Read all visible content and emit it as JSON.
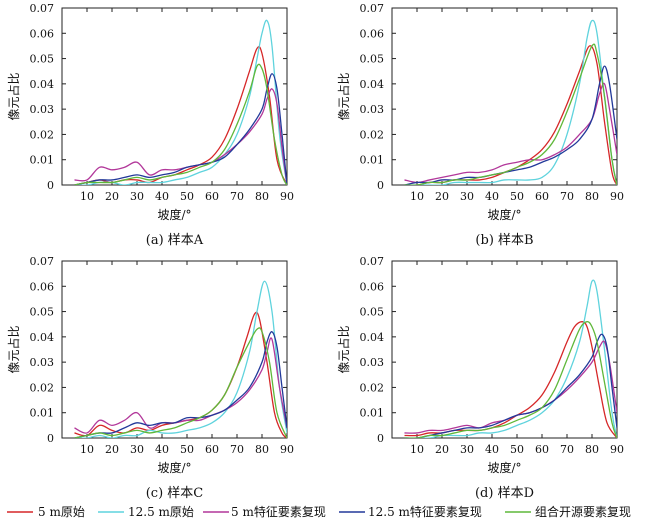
{
  "chart_data": [
    {
      "type": "line",
      "caption": "(a) 样本A",
      "xlabel": "坡度/°",
      "ylabel": "像元占比",
      "xlim": [
        0,
        90
      ],
      "ylim": [
        0,
        0.07
      ],
      "xticks": [
        "10",
        "20",
        "30",
        "40",
        "50",
        "60",
        "70",
        "80",
        "90"
      ],
      "yticks": [
        "0",
        "0.01",
        "0.02",
        "0.03",
        "0.04",
        "0.05",
        "0.06",
        "0.07"
      ],
      "series": [
        {
          "name": "5 m原始",
          "x": [
            5,
            10,
            15,
            20,
            25,
            30,
            35,
            40,
            45,
            50,
            55,
            60,
            65,
            70,
            75,
            78,
            80,
            83,
            86,
            90
          ],
          "y": [
            0,
            0.001,
            0.002,
            0.001,
            0.002,
            0.002,
            0.001,
            0.003,
            0.004,
            0.006,
            0.008,
            0.011,
            0.018,
            0.03,
            0.045,
            0.054,
            0.052,
            0.035,
            0.01,
            0
          ]
        },
        {
          "name": "12.5 m原始",
          "x": [
            5,
            10,
            15,
            20,
            25,
            30,
            35,
            40,
            45,
            50,
            55,
            60,
            65,
            70,
            75,
            78,
            80,
            82,
            84,
            87,
            90
          ],
          "y": [
            0,
            0,
            0.001,
            0.001,
            0,
            0.001,
            0.001,
            0.001,
            0.002,
            0.003,
            0.005,
            0.007,
            0.012,
            0.02,
            0.035,
            0.05,
            0.06,
            0.065,
            0.055,
            0.02,
            0
          ]
        },
        {
          "name": "5 m特征要素复现",
          "x": [
            5,
            10,
            15,
            20,
            25,
            30,
            35,
            40,
            45,
            50,
            55,
            60,
            65,
            70,
            75,
            80,
            82,
            84,
            86,
            88,
            90
          ],
          "y": [
            0.002,
            0.002,
            0.007,
            0.006,
            0.007,
            0.009,
            0.004,
            0.006,
            0.006,
            0.007,
            0.008,
            0.009,
            0.012,
            0.016,
            0.021,
            0.028,
            0.034,
            0.038,
            0.032,
            0.015,
            0
          ]
        },
        {
          "name": "12.5 m特征要素复现",
          "x": [
            5,
            10,
            15,
            20,
            25,
            30,
            35,
            40,
            45,
            50,
            55,
            60,
            65,
            70,
            75,
            80,
            82,
            84,
            86,
            88,
            90
          ],
          "y": [
            0,
            0.001,
            0.002,
            0.002,
            0.003,
            0.004,
            0.003,
            0.004,
            0.005,
            0.007,
            0.008,
            0.009,
            0.011,
            0.016,
            0.022,
            0.03,
            0.038,
            0.044,
            0.038,
            0.02,
            0
          ]
        },
        {
          "name": "组合开源要素复现",
          "x": [
            5,
            10,
            15,
            20,
            25,
            30,
            35,
            40,
            45,
            50,
            55,
            60,
            65,
            70,
            75,
            78,
            80,
            82,
            85,
            88,
            90
          ],
          "y": [
            0,
            0.001,
            0.001,
            0.001,
            0.002,
            0.003,
            0.002,
            0.003,
            0.004,
            0.005,
            0.007,
            0.009,
            0.014,
            0.024,
            0.037,
            0.047,
            0.046,
            0.038,
            0.018,
            0.004,
            0
          ]
        }
      ]
    },
    {
      "type": "line",
      "caption": "(b) 样本B",
      "xlabel": "坡度/°",
      "ylabel": "像元占比",
      "xlim": [
        0,
        90
      ],
      "ylim": [
        0,
        0.07
      ],
      "xticks": [
        "10",
        "20",
        "30",
        "40",
        "50",
        "60",
        "70",
        "80",
        "90"
      ],
      "yticks": [
        "0",
        "0.01",
        "0.02",
        "0.03",
        "0.04",
        "0.05",
        "0.06",
        "0.07"
      ],
      "series": [
        {
          "name": "5 m原始",
          "x": [
            5,
            10,
            15,
            20,
            25,
            30,
            35,
            40,
            45,
            50,
            55,
            60,
            65,
            70,
            75,
            79,
            82,
            85,
            88,
            90
          ],
          "y": [
            0,
            0,
            0.001,
            0.001,
            0.002,
            0.002,
            0.002,
            0.003,
            0.005,
            0.007,
            0.01,
            0.014,
            0.021,
            0.032,
            0.045,
            0.055,
            0.048,
            0.025,
            0.005,
            0
          ]
        },
        {
          "name": "12.5 m原始",
          "x": [
            5,
            10,
            15,
            20,
            25,
            30,
            35,
            40,
            45,
            50,
            55,
            60,
            65,
            70,
            75,
            78,
            80,
            82,
            85,
            88,
            90
          ],
          "y": [
            0,
            0,
            0,
            0,
            0.001,
            0.001,
            0.001,
            0.001,
            0.002,
            0.002,
            0.002,
            0.003,
            0.008,
            0.02,
            0.04,
            0.058,
            0.065,
            0.06,
            0.035,
            0.01,
            0
          ]
        },
        {
          "name": "5 m特征要素复现",
          "x": [
            5,
            10,
            15,
            20,
            25,
            30,
            35,
            40,
            45,
            50,
            55,
            60,
            65,
            70,
            75,
            80,
            83,
            85,
            87,
            90
          ],
          "y": [
            0.002,
            0.001,
            0.002,
            0.003,
            0.004,
            0.005,
            0.005,
            0.006,
            0.008,
            0.009,
            0.01,
            0.01,
            0.012,
            0.015,
            0.02,
            0.026,
            0.036,
            0.04,
            0.03,
            0.012
          ]
        },
        {
          "name": "12.5 m特征要素复现",
          "x": [
            5,
            10,
            15,
            20,
            25,
            30,
            35,
            40,
            45,
            50,
            55,
            60,
            65,
            70,
            75,
            80,
            83,
            85,
            87,
            90
          ],
          "y": [
            0,
            0.001,
            0.001,
            0.002,
            0.002,
            0.003,
            0.003,
            0.004,
            0.005,
            0.006,
            0.007,
            0.009,
            0.011,
            0.014,
            0.018,
            0.026,
            0.04,
            0.047,
            0.04,
            0.018
          ]
        },
        {
          "name": "组合开源要素复现",
          "x": [
            5,
            10,
            15,
            20,
            25,
            30,
            35,
            40,
            45,
            50,
            55,
            60,
            65,
            70,
            75,
            80,
            82,
            85,
            88,
            90
          ],
          "y": [
            0,
            0,
            0.001,
            0.001,
            0.002,
            0.002,
            0.003,
            0.004,
            0.005,
            0.007,
            0.009,
            0.012,
            0.018,
            0.029,
            0.042,
            0.055,
            0.052,
            0.035,
            0.01,
            0
          ]
        }
      ]
    },
    {
      "type": "line",
      "caption": "(c) 样本C",
      "xlabel": "坡度/°",
      "ylabel": "像元占比",
      "xlim": [
        0,
        90
      ],
      "ylim": [
        0,
        0.07
      ],
      "xticks": [
        "10",
        "20",
        "30",
        "40",
        "50",
        "60",
        "70",
        "80",
        "90"
      ],
      "yticks": [
        "0",
        "0.01",
        "0.02",
        "0.03",
        "0.04",
        "0.05",
        "0.06",
        "0.07"
      ],
      "series": [
        {
          "name": "5 m原始",
          "x": [
            5,
            10,
            15,
            20,
            25,
            30,
            35,
            40,
            45,
            50,
            55,
            60,
            65,
            70,
            74,
            77,
            79,
            82,
            85,
            88,
            90
          ],
          "y": [
            0.002,
            0.001,
            0.005,
            0.003,
            0.002,
            0.004,
            0.003,
            0.005,
            0.006,
            0.007,
            0.008,
            0.011,
            0.017,
            0.028,
            0.04,
            0.049,
            0.047,
            0.03,
            0.01,
            0.002,
            0
          ]
        },
        {
          "name": "12.5 m原始",
          "x": [
            5,
            10,
            15,
            20,
            25,
            30,
            35,
            40,
            45,
            50,
            55,
            60,
            65,
            70,
            75,
            78,
            81,
            84,
            87,
            90
          ],
          "y": [
            0,
            0,
            0.001,
            0,
            0.001,
            0.001,
            0.003,
            0.002,
            0.002,
            0.003,
            0.004,
            0.006,
            0.01,
            0.018,
            0.034,
            0.05,
            0.062,
            0.05,
            0.02,
            0.002
          ]
        },
        {
          "name": "5 m特征要素复现",
          "x": [
            5,
            10,
            15,
            20,
            25,
            30,
            35,
            40,
            45,
            50,
            55,
            60,
            65,
            70,
            75,
            80,
            82,
            84,
            87,
            90
          ],
          "y": [
            0.004,
            0.002,
            0.007,
            0.005,
            0.007,
            0.01,
            0.004,
            0.006,
            0.006,
            0.007,
            0.007,
            0.009,
            0.011,
            0.014,
            0.019,
            0.027,
            0.034,
            0.039,
            0.02,
            0.004
          ]
        },
        {
          "name": "12.5 m特征要素复现",
          "x": [
            5,
            10,
            15,
            20,
            25,
            30,
            35,
            40,
            45,
            50,
            55,
            60,
            65,
            70,
            75,
            80,
            82,
            84,
            86,
            88,
            90
          ],
          "y": [
            0,
            0.001,
            0.002,
            0.002,
            0.004,
            0.006,
            0.005,
            0.006,
            0.006,
            0.008,
            0.008,
            0.009,
            0.011,
            0.015,
            0.02,
            0.03,
            0.038,
            0.042,
            0.036,
            0.02,
            0.004
          ]
        },
        {
          "name": "组合开源要素复现",
          "x": [
            5,
            10,
            15,
            20,
            25,
            30,
            35,
            40,
            45,
            50,
            55,
            60,
            65,
            70,
            75,
            78,
            80,
            83,
            86,
            90
          ],
          "y": [
            0,
            0.001,
            0.002,
            0.001,
            0.002,
            0.003,
            0.002,
            0.003,
            0.004,
            0.006,
            0.008,
            0.011,
            0.017,
            0.028,
            0.038,
            0.043,
            0.042,
            0.03,
            0.01,
            0
          ]
        }
      ]
    },
    {
      "type": "line",
      "caption": "(d) 样本D",
      "xlabel": "坡度/°",
      "ylabel": "像元占比",
      "xlim": [
        0,
        90
      ],
      "ylim": [
        0,
        0.07
      ],
      "xticks": [
        "10",
        "20",
        "30",
        "40",
        "50",
        "60",
        "70",
        "80",
        "90"
      ],
      "yticks": [
        "0",
        "0.01",
        "0.02",
        "0.03",
        "0.04",
        "0.05",
        "0.06",
        "0.07"
      ],
      "series": [
        {
          "name": "5 m原始",
          "x": [
            5,
            10,
            15,
            20,
            25,
            30,
            35,
            40,
            45,
            50,
            55,
            60,
            65,
            70,
            73,
            76,
            78,
            80,
            83,
            86,
            90
          ],
          "y": [
            0.001,
            0.001,
            0.002,
            0.002,
            0.003,
            0.003,
            0.003,
            0.004,
            0.006,
            0.009,
            0.012,
            0.017,
            0.026,
            0.038,
            0.044,
            0.046,
            0.044,
            0.036,
            0.02,
            0.006,
            0
          ]
        },
        {
          "name": "12.5 m原始",
          "x": [
            5,
            10,
            15,
            20,
            25,
            30,
            35,
            40,
            45,
            50,
            55,
            60,
            65,
            70,
            75,
            78,
            80,
            82,
            85,
            88,
            90
          ],
          "y": [
            0,
            0,
            0,
            0.001,
            0.001,
            0.001,
            0.002,
            0.002,
            0.003,
            0.005,
            0.007,
            0.01,
            0.015,
            0.024,
            0.038,
            0.052,
            0.062,
            0.058,
            0.035,
            0.01,
            0
          ]
        },
        {
          "name": "5 m特征要素复现",
          "x": [
            5,
            10,
            15,
            20,
            25,
            30,
            35,
            40,
            45,
            50,
            55,
            60,
            65,
            70,
            75,
            80,
            83,
            85,
            87,
            90
          ],
          "y": [
            0.002,
            0.002,
            0.003,
            0.003,
            0.004,
            0.005,
            0.004,
            0.006,
            0.007,
            0.009,
            0.01,
            0.012,
            0.015,
            0.019,
            0.024,
            0.03,
            0.036,
            0.038,
            0.03,
            0.01
          ]
        },
        {
          "name": "12.5 m特征要素复现",
          "x": [
            5,
            10,
            15,
            20,
            25,
            30,
            35,
            40,
            45,
            50,
            55,
            60,
            65,
            70,
            75,
            80,
            82,
            84,
            86,
            88,
            90
          ],
          "y": [
            0,
            0,
            0.001,
            0.002,
            0.003,
            0.004,
            0.004,
            0.005,
            0.007,
            0.009,
            0.01,
            0.012,
            0.015,
            0.02,
            0.025,
            0.032,
            0.038,
            0.041,
            0.036,
            0.02,
            0.004
          ]
        },
        {
          "name": "组合开源要素复现",
          "x": [
            5,
            10,
            15,
            20,
            25,
            30,
            35,
            40,
            45,
            50,
            55,
            60,
            65,
            70,
            75,
            78,
            80,
            82,
            85,
            88,
            90
          ],
          "y": [
            0,
            0,
            0.001,
            0.001,
            0.002,
            0.003,
            0.003,
            0.004,
            0.005,
            0.007,
            0.009,
            0.012,
            0.019,
            0.031,
            0.043,
            0.046,
            0.044,
            0.038,
            0.022,
            0.006,
            0
          ]
        }
      ]
    }
  ],
  "legend": {
    "placement": "bottom",
    "items": [
      {
        "label": "5 m原始",
        "color": "#d62728"
      },
      {
        "label": "12.5 m原始",
        "color": "#5fd3dd"
      },
      {
        "label": "5 m特征要素复现",
        "color": "#b2379a"
      },
      {
        "label": "12.5 m特征要素复现",
        "color": "#22399a"
      },
      {
        "label": "组合开源要素复现",
        "color": "#5fb83a"
      }
    ]
  }
}
